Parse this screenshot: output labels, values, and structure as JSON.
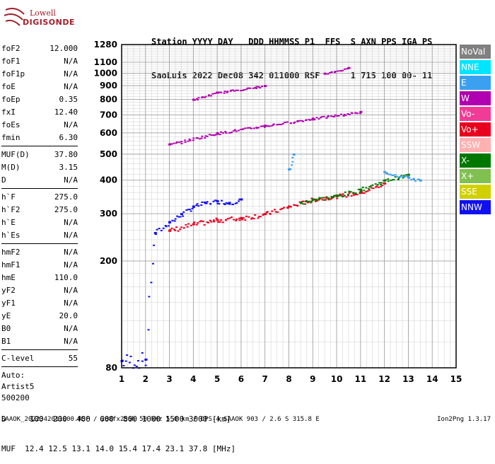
{
  "logo": {
    "line1": "Lowell",
    "line2": "DIGISONDE"
  },
  "header": {
    "line1": "Station YYYY DAY   DDD HHMMSS P1  FFS  S AXN PPS IGA PS",
    "line2": "SaoLuis 2022 Dec08 342 011000 RSF      1 715 100 00- 11"
  },
  "params": {
    "group1": [
      {
        "label": "foF2",
        "value": "12.000"
      },
      {
        "label": "foF1",
        "value": "N/A"
      },
      {
        "label": "foF1p",
        "value": "N/A"
      },
      {
        "label": "foE",
        "value": "N/A"
      },
      {
        "label": "foEp",
        "value": "0.35"
      },
      {
        "label": "fxI",
        "value": "12.40"
      },
      {
        "label": "foEs",
        "value": "N/A"
      },
      {
        "label": "fmin",
        "value": "6.30"
      }
    ],
    "group2": [
      {
        "label": "MUF(D)",
        "value": "37.80"
      },
      {
        "label": "M(D)",
        "value": "3.15"
      },
      {
        "label": "D",
        "value": "N/A"
      }
    ],
    "group3": [
      {
        "label": "h`F",
        "value": "275.0"
      },
      {
        "label": "h`F2",
        "value": "275.0"
      },
      {
        "label": "h`E",
        "value": "N/A"
      },
      {
        "label": "h`Es",
        "value": "N/A"
      }
    ],
    "group4": [
      {
        "label": "hmF2",
        "value": "N/A"
      },
      {
        "label": "hmF1",
        "value": "N/A"
      },
      {
        "label": "hmE",
        "value": "110.0"
      },
      {
        "label": "yF2",
        "value": "N/A"
      },
      {
        "label": "yF1",
        "value": "N/A"
      },
      {
        "label": "yE",
        "value": "20.0"
      },
      {
        "label": "B0",
        "value": "N/A"
      },
      {
        "label": "B1",
        "value": "N/A"
      }
    ],
    "group5": [
      {
        "label": "C-level",
        "value": "55"
      }
    ],
    "auto": [
      "Auto:",
      "Artist5",
      "500200"
    ]
  },
  "legend": [
    {
      "label": "NoVal",
      "color": "#808080"
    },
    {
      "label": "NNE",
      "color": "#00e5ff"
    },
    {
      "label": "E",
      "color": "#3aa0f0"
    },
    {
      "label": "W",
      "color": "#b000b0"
    },
    {
      "label": "Vo-",
      "color": "#f03c96"
    },
    {
      "label": "Vo+",
      "color": "#e8001e"
    },
    {
      "label": "SSW",
      "color": "#ffb0b0"
    },
    {
      "label": "X-",
      "color": "#007800"
    },
    {
      "label": "X+",
      "color": "#80c050"
    },
    {
      "label": "SSE",
      "color": "#d0d000"
    },
    {
      "label": "NNW",
      "color": "#1010f0"
    }
  ],
  "footer": {
    "line1": "D     100  200  400  600  800 1000 1500 3000 [km]",
    "line2": "MUF  12.4 12.5 13.1 14.0 15.4 17.4 23.1 37.8 [MHz]",
    "line3": "SAAOK_2022342011000.RSF / 288fx256h 50 kHz 5.0 km / DPS-4 SAAOK 903 / 2.6 S 315.8 E",
    "version": "Ion2Png 1.3.17"
  },
  "chart_data": {
    "type": "scatter",
    "title": "",
    "xlabel": "",
    "ylabel": "",
    "xlim": [
      1,
      15
    ],
    "ylim": [
      80,
      1280
    ],
    "y_scale": "log",
    "xticks": [
      1,
      2,
      3,
      4,
      5,
      6,
      7,
      8,
      9,
      10,
      11,
      12,
      13,
      14,
      15
    ],
    "yticks": [
      80,
      200,
      300,
      400,
      500,
      600,
      700,
      800,
      900,
      1000,
      1100,
      1280
    ],
    "grid": true,
    "series": [
      {
        "name": "NNW",
        "points": [
          [
            1,
            85
          ],
          [
            2,
            86
          ],
          [
            2.4,
            255
          ],
          [
            3,
            280
          ],
          [
            3.5,
            300
          ],
          [
            4,
            320
          ],
          [
            4.5,
            330
          ],
          [
            5,
            335
          ],
          [
            5.5,
            330
          ],
          [
            6,
            340
          ]
        ]
      },
      {
        "name": "Vo+",
        "points": [
          [
            3,
            260
          ],
          [
            4,
            275
          ],
          [
            5,
            285
          ],
          [
            6,
            290
          ],
          [
            7,
            300
          ],
          [
            8,
            320
          ],
          [
            9,
            340
          ],
          [
            10,
            350
          ],
          [
            11,
            360
          ],
          [
            12,
            390
          ]
        ]
      },
      {
        "name": "X-",
        "points": [
          [
            8.5,
            330
          ],
          [
            9,
            340
          ],
          [
            10,
            350
          ],
          [
            11,
            370
          ],
          [
            12,
            400
          ],
          [
            13,
            420
          ]
        ]
      },
      {
        "name": "E",
        "points": [
          [
            8,
            440
          ],
          [
            8.2,
            500
          ],
          [
            12,
            430
          ],
          [
            13,
            410
          ],
          [
            13.5,
            400
          ]
        ]
      },
      {
        "name": "W",
        "points": [
          [
            3,
            545
          ],
          [
            5,
            600
          ],
          [
            7,
            640
          ],
          [
            9,
            680
          ],
          [
            11,
            720
          ],
          [
            4,
            800
          ],
          [
            5,
            850
          ],
          [
            7,
            900
          ],
          [
            9.5,
            1000
          ],
          [
            10.5,
            1050
          ]
        ]
      }
    ]
  }
}
